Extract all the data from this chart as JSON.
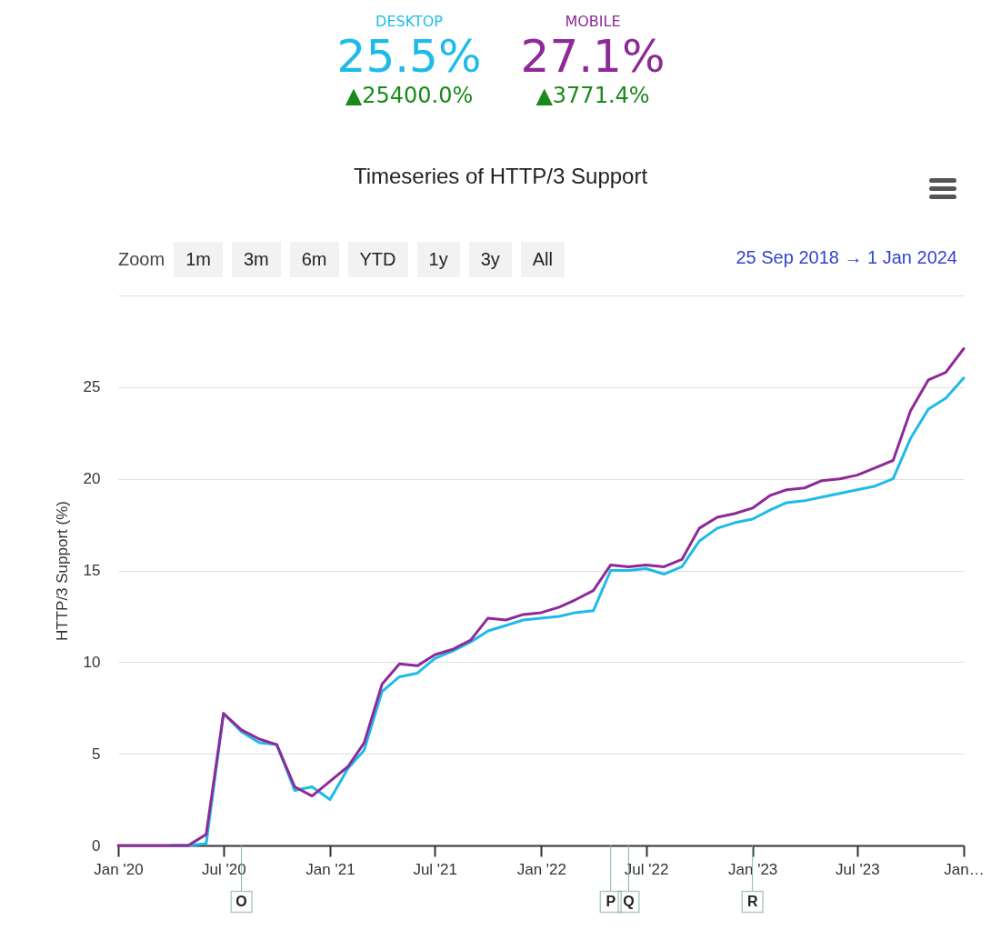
{
  "chart_data": {
    "type": "line",
    "title": "Timeseries of HTTP/3 Support",
    "ylabel": "HTTP/3 Support (%)",
    "x": [
      "2020-01",
      "2020-02",
      "2020-03",
      "2020-04",
      "2020-05",
      "2020-06",
      "2020-07",
      "2020-08",
      "2020-09",
      "2020-10",
      "2020-11",
      "2020-12",
      "2021-01",
      "2021-02",
      "2021-03",
      "2021-04",
      "2021-05",
      "2021-06",
      "2021-07",
      "2021-08",
      "2021-09",
      "2021-10",
      "2021-11",
      "2021-12",
      "2022-01",
      "2022-02",
      "2022-03",
      "2022-04",
      "2022-05",
      "2022-06",
      "2022-07",
      "2022-08",
      "2022-09",
      "2022-10",
      "2022-11",
      "2022-12",
      "2023-01",
      "2023-02",
      "2023-03",
      "2023-04",
      "2023-05",
      "2023-06",
      "2023-07",
      "2023-08",
      "2023-09",
      "2023-10",
      "2023-11",
      "2023-12",
      "2024-01"
    ],
    "series": [
      {
        "name": "DESKTOP",
        "color": "#1ebbe8",
        "values": [
          null,
          null,
          null,
          0,
          0,
          0.1,
          7.2,
          6.2,
          5.6,
          5.5,
          3.0,
          3.2,
          2.5,
          4.2,
          5.2,
          8.4,
          9.2,
          9.4,
          10.2,
          10.6,
          11.1,
          11.7,
          12.0,
          12.3,
          12.4,
          12.5,
          12.7,
          12.8,
          15.0,
          15.0,
          15.1,
          14.8,
          15.2,
          16.6,
          17.3,
          17.6,
          17.8,
          18.3,
          18.7,
          18.8,
          19.0,
          19.2,
          19.4,
          19.6,
          20.0,
          22.2,
          23.8,
          24.4,
          25.5
        ]
      },
      {
        "name": "MOBILE",
        "color": "#8e2a98",
        "values": [
          0,
          0,
          0,
          0,
          0,
          0.6,
          7.2,
          6.3,
          5.8,
          5.5,
          3.2,
          2.7,
          3.5,
          4.3,
          5.6,
          8.8,
          9.9,
          9.8,
          10.4,
          10.7,
          11.2,
          12.4,
          12.3,
          12.6,
          12.7,
          13.0,
          13.4,
          13.9,
          15.3,
          15.2,
          15.3,
          15.2,
          15.6,
          17.3,
          17.9,
          18.1,
          18.4,
          19.1,
          19.4,
          19.5,
          19.9,
          20.0,
          20.2,
          20.6,
          21.0,
          23.7,
          25.4,
          25.8,
          27.1
        ]
      }
    ],
    "xlim": [
      "2020-01",
      "2024-01"
    ],
    "xticks": [
      {
        "value": "2020-01",
        "label": "Jan '20"
      },
      {
        "value": "2020-07",
        "label": "Jul '20"
      },
      {
        "value": "2021-01",
        "label": "Jan '21"
      },
      {
        "value": "2021-07",
        "label": "Jul '21"
      },
      {
        "value": "2022-01",
        "label": "Jan '22"
      },
      {
        "value": "2022-07",
        "label": "Jul '22"
      },
      {
        "value": "2023-01",
        "label": "Jan '23"
      },
      {
        "value": "2023-07",
        "label": "Jul '23"
      },
      {
        "value": "2024-01",
        "label": "Jan…"
      }
    ],
    "ylim": [
      0,
      30
    ],
    "yticks": [
      0,
      5,
      10,
      15,
      20,
      25,
      {
        "value": 30,
        "label": null
      }
    ],
    "grid": "y",
    "marker": "none",
    "line_style": "solid",
    "ref_lines": [
      {
        "axis": "x",
        "value": "2020-08",
        "label": "O",
        "color": "#8fb3b3"
      },
      {
        "axis": "x",
        "value": "2022-05",
        "label": "P",
        "color": "#8fb3b3"
      },
      {
        "axis": "x",
        "value": "2022-06",
        "label": "Q",
        "color": "#8fb3b3"
      },
      {
        "axis": "x",
        "value": "2023-01",
        "label": "R",
        "color": "#8fb3b3"
      }
    ],
    "annotations": [
      "25.5%",
      "▲25400.0%",
      "27.1%",
      "▲3771.4%",
      "Zoom",
      "1m",
      "3m",
      "6m",
      "YTD",
      "1y",
      "3y",
      "All",
      "25 Sep 2018",
      "→",
      "1 Jan 2024"
    ]
  }
}
